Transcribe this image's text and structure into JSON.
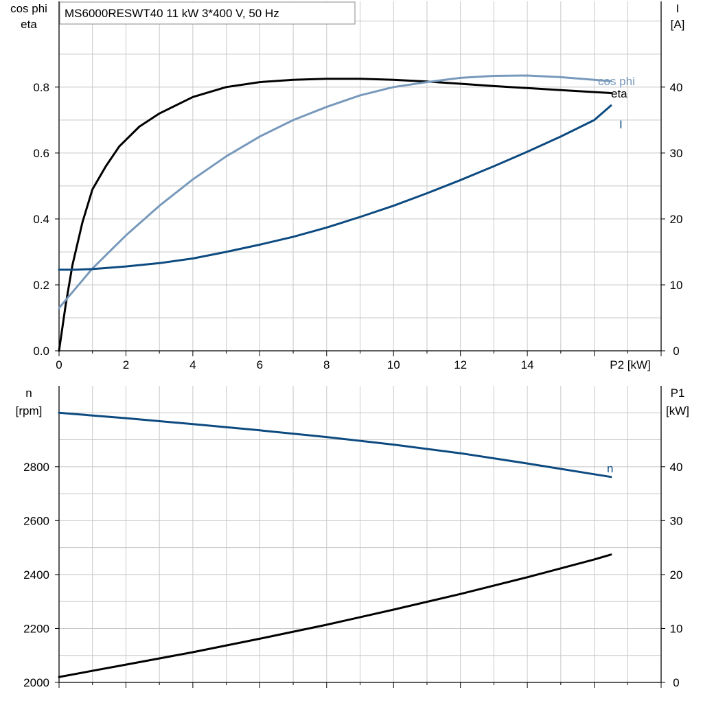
{
  "title": "MS6000RESWT40   11 kW   3*400 V, 50 Hz",
  "colors": {
    "black": "#000000",
    "cos_phi": "#7899bb",
    "current": "#0c4a80",
    "grid": "#c8c8c8"
  },
  "chart_data": [
    {
      "type": "line",
      "x_label": "P2 [kW]",
      "x_ticks": [
        "0",
        "2",
        "4",
        "6",
        "8",
        "10",
        "12",
        "14"
      ],
      "xlim": [
        0,
        18
      ],
      "grid": true,
      "left_axis": {
        "label_lines": [
          "cos phi",
          "eta"
        ],
        "ylim": [
          0,
          1.06
        ],
        "ticks": [
          "0.0",
          "0.2",
          "0.4",
          "0.6",
          "0.8"
        ]
      },
      "right_axis": {
        "label_lines": [
          "I",
          "[A]"
        ],
        "ylim": [
          0,
          53
        ],
        "ticks": [
          "0",
          "10",
          "20",
          "30",
          "40"
        ]
      },
      "series": [
        {
          "name": "eta",
          "axis": "left",
          "color": "#000000",
          "x": [
            0,
            0.2,
            0.4,
            0.7,
            1.0,
            1.4,
            1.8,
            2.4,
            3.0,
            4.0,
            5.0,
            6.0,
            7.0,
            8.0,
            9.0,
            10.0,
            11.0,
            12.0,
            13.0,
            14.0,
            15.0,
            16.0,
            16.5
          ],
          "y": [
            0,
            0.14,
            0.26,
            0.39,
            0.49,
            0.56,
            0.62,
            0.68,
            0.72,
            0.77,
            0.8,
            0.815,
            0.822,
            0.825,
            0.825,
            0.822,
            0.817,
            0.81,
            0.803,
            0.797,
            0.791,
            0.785,
            0.782
          ]
        },
        {
          "name": "cos phi",
          "axis": "left",
          "color": "#7899bb",
          "x": [
            0,
            0.5,
            1.0,
            2.0,
            3.0,
            4.0,
            5.0,
            6.0,
            7.0,
            8.0,
            9.0,
            10.0,
            11.0,
            12.0,
            13.0,
            14.0,
            15.0,
            16.0,
            16.5
          ],
          "y": [
            0.13,
            0.19,
            0.25,
            0.35,
            0.44,
            0.52,
            0.59,
            0.65,
            0.7,
            0.74,
            0.775,
            0.8,
            0.815,
            0.828,
            0.834,
            0.835,
            0.83,
            0.822,
            0.818
          ]
        },
        {
          "name": "I",
          "axis": "right",
          "color": "#0c4a80",
          "x": [
            0,
            0.5,
            1.0,
            2.0,
            3.0,
            4.0,
            5.0,
            6.0,
            7.0,
            8.0,
            9.0,
            10.0,
            11.0,
            12.0,
            13.0,
            14.0,
            15.0,
            16.0,
            16.5
          ],
          "y": [
            12.3,
            12.3,
            12.4,
            12.8,
            13.3,
            14.0,
            15.0,
            16.1,
            17.3,
            18.7,
            20.3,
            22.0,
            23.9,
            25.9,
            28.0,
            30.2,
            32.5,
            35.0,
            37.2
          ]
        }
      ]
    },
    {
      "type": "line",
      "x_label": "",
      "xlim": [
        0,
        18
      ],
      "grid": true,
      "left_axis": {
        "label_lines": [
          "n",
          "[rpm]"
        ],
        "ylim": [
          2000,
          3100
        ],
        "ticks": [
          "2000",
          "2200",
          "2400",
          "2600",
          "2800"
        ]
      },
      "right_axis": {
        "label_lines": [
          "P1",
          "[kW]"
        ],
        "ylim": [
          0,
          55
        ],
        "ticks": [
          "0",
          "10",
          "20",
          "30",
          "40"
        ]
      },
      "series": [
        {
          "name": "n",
          "axis": "left",
          "color": "#0c4a80",
          "x": [
            0,
            2,
            4,
            6,
            8,
            10,
            12,
            14,
            16,
            16.5
          ],
          "y": [
            3000,
            2980,
            2958,
            2935,
            2910,
            2882,
            2850,
            2812,
            2772,
            2762
          ]
        },
        {
          "name": "",
          "axis": "right",
          "color": "#000000",
          "x": [
            0,
            2,
            4,
            6,
            8,
            10,
            12,
            14,
            16,
            16.5
          ],
          "y": [
            1.0,
            3.3,
            5.6,
            8.1,
            10.7,
            13.5,
            16.4,
            19.5,
            22.8,
            23.7
          ]
        }
      ]
    }
  ]
}
